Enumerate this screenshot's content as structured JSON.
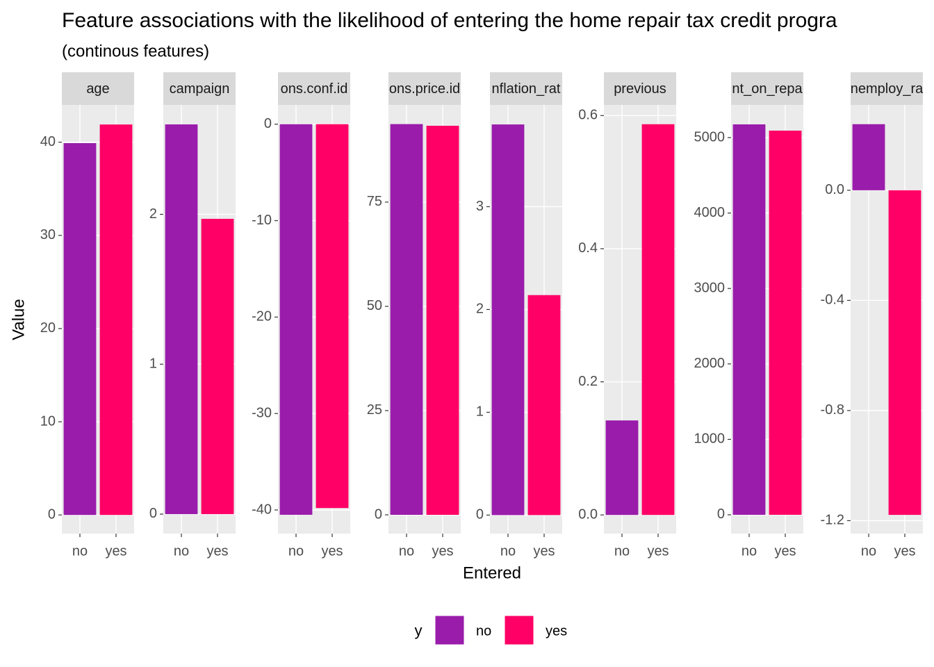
{
  "chart_data": {
    "type": "bar",
    "title": "Feature associations with the likelihood of entering the home repair tax credit progra",
    "subtitle": "(continous features)",
    "x_label": "Entered",
    "y_label": "Value",
    "legend_title": "y",
    "series": [
      {
        "name": "no",
        "color": "#9a1cab"
      },
      {
        "name": "yes",
        "color": "#ff0066"
      }
    ],
    "facets": [
      {
        "strip": "age",
        "categories": [
          "no",
          "yes"
        ],
        "values": [
          39.9,
          41.9
        ],
        "ylim": [
          -2.0,
          44.0
        ],
        "yticks": [
          0,
          10,
          20,
          30,
          40
        ]
      },
      {
        "strip": "campaign",
        "categories": [
          "no",
          "yes"
        ],
        "values": [
          2.6,
          1.97
        ],
        "ylim": [
          -0.13,
          2.73
        ],
        "yticks": [
          0,
          1,
          2
        ]
      },
      {
        "strip": "ons.conf.id",
        "categories": [
          "no",
          "yes"
        ],
        "values": [
          -40.5,
          -39.8
        ],
        "ylim": [
          -42.45,
          2.0
        ],
        "yticks": [
          0,
          -10,
          -20,
          -30,
          -40
        ]
      },
      {
        "strip": "ons.price.id",
        "categories": [
          "no",
          "yes"
        ],
        "values": [
          93.7,
          93.3
        ],
        "ylim": [
          -4.5,
          98.3
        ],
        "yticks": [
          0,
          25,
          50,
          75
        ]
      },
      {
        "strip": "nflation_rat",
        "categories": [
          "no",
          "yes"
        ],
        "values": [
          3.8,
          2.14
        ],
        "ylim": [
          -0.18,
          3.99
        ],
        "yticks": [
          0,
          1,
          2,
          3
        ]
      },
      {
        "strip": "previous",
        "categories": [
          "no",
          "yes"
        ],
        "values": [
          0.142,
          0.587
        ],
        "ylim": [
          -0.028,
          0.616
        ],
        "yticks": [
          {
            "value": 0,
            "label": "0.0"
          },
          0.2,
          0.4,
          0.6
        ]
      },
      {
        "strip": "nt_on_repa",
        "categories": [
          "no",
          "yes"
        ],
        "values": [
          5175,
          5092
        ],
        "ylim": [
          -249,
          5433
        ],
        "yticks": [
          0,
          1000,
          2000,
          3000,
          4000,
          5000
        ]
      },
      {
        "strip": "nemploy_ra",
        "categories": [
          "no",
          "yes"
        ],
        "values": [
          0.24,
          -1.179
        ],
        "ylim": [
          -1.247,
          0.31
        ],
        "yticks": [
          {
            "value": 0,
            "label": "0.0"
          },
          -0.4,
          -0.8,
          -1.2
        ]
      }
    ]
  }
}
